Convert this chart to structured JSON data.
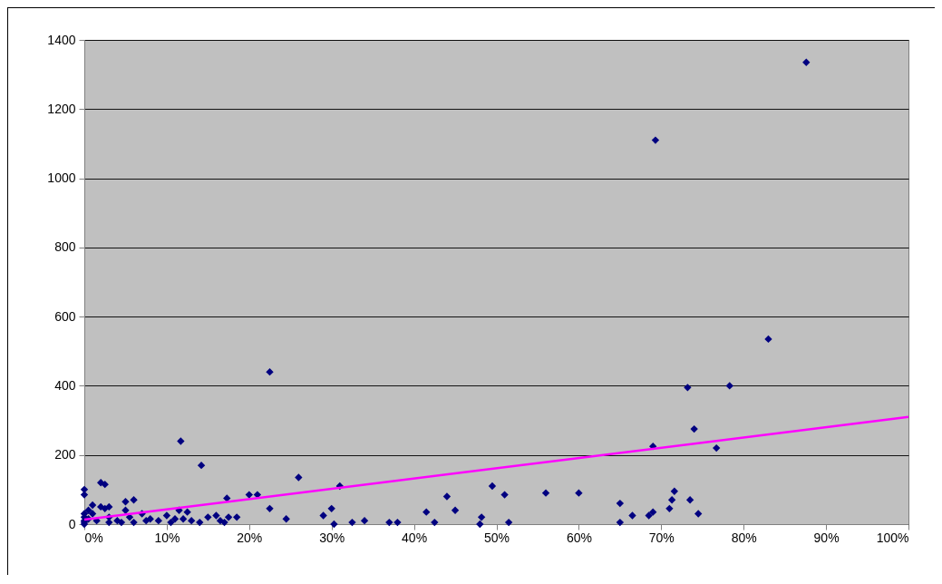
{
  "chart_data": {
    "type": "scatter",
    "grid": "y",
    "xlim": [
      0,
      100
    ],
    "xticks": [
      {
        "value": 0,
        "label": "0%"
      },
      {
        "value": 10,
        "label": "10%"
      },
      {
        "value": 20,
        "label": "20%"
      },
      {
        "value": 30,
        "label": "30%"
      },
      {
        "value": 40,
        "label": "40%"
      },
      {
        "value": 50,
        "label": "50%"
      },
      {
        "value": 60,
        "label": "60%"
      },
      {
        "value": 70,
        "label": "70%"
      },
      {
        "value": 80,
        "label": "80%"
      },
      {
        "value": 90,
        "label": "90%"
      },
      {
        "value": 100,
        "label": "100%"
      }
    ],
    "ylim": [
      0,
      1400
    ],
    "yticks": [
      0,
      200,
      400,
      600,
      800,
      1000,
      1200,
      1400
    ],
    "series": [
      {
        "marker": "diamond",
        "color": "#000080",
        "x": [
          0,
          0,
          0,
          0,
          0,
          0,
          0,
          0.5,
          0.5,
          1,
          1,
          1.5,
          2,
          2,
          2.5,
          2.5,
          3,
          3,
          3,
          4,
          4.5,
          5,
          5,
          5.5,
          6,
          6,
          7,
          7.5,
          8,
          9,
          10,
          10.5,
          11,
          11.5,
          11.7,
          12,
          12.5,
          13,
          14,
          14.2,
          15,
          16,
          16.5,
          17,
          17.3,
          17.5,
          18.5,
          20,
          21,
          22.5,
          22.5,
          24.5,
          26,
          29,
          30,
          30.3,
          31,
          32.5,
          34,
          37,
          38,
          41.5,
          42.5,
          44,
          45,
          48,
          48.2,
          49.5,
          51,
          51.5,
          56,
          60,
          65,
          65,
          66.5,
          68.5,
          69,
          69,
          69.3,
          71,
          71.3,
          71.6,
          73.2,
          73.5,
          74,
          74.5,
          76.7,
          78.3,
          83,
          87.6
        ],
        "values": [
          100,
          85,
          30,
          20,
          10,
          5,
          0,
          40,
          15,
          55,
          30,
          10,
          50,
          120,
          45,
          115,
          50,
          20,
          5,
          10,
          5,
          65,
          40,
          20,
          70,
          5,
          30,
          10,
          15,
          10,
          25,
          5,
          15,
          40,
          240,
          15,
          35,
          10,
          5,
          170,
          20,
          25,
          10,
          5,
          75,
          20,
          20,
          85,
          85,
          440,
          45,
          15,
          135,
          25,
          45,
          0,
          110,
          5,
          10,
          5,
          5,
          35,
          5,
          80,
          40,
          0,
          20,
          110,
          85,
          5,
          90,
          90,
          5,
          60,
          25,
          25,
          225,
          35,
          1110,
          45,
          70,
          95,
          395,
          70,
          275,
          30,
          220,
          400,
          535,
          1335
        ]
      },
      {
        "type": "line",
        "color": "#ff00ff",
        "x": [
          0,
          100
        ],
        "values": [
          13,
          310
        ]
      }
    ]
  }
}
